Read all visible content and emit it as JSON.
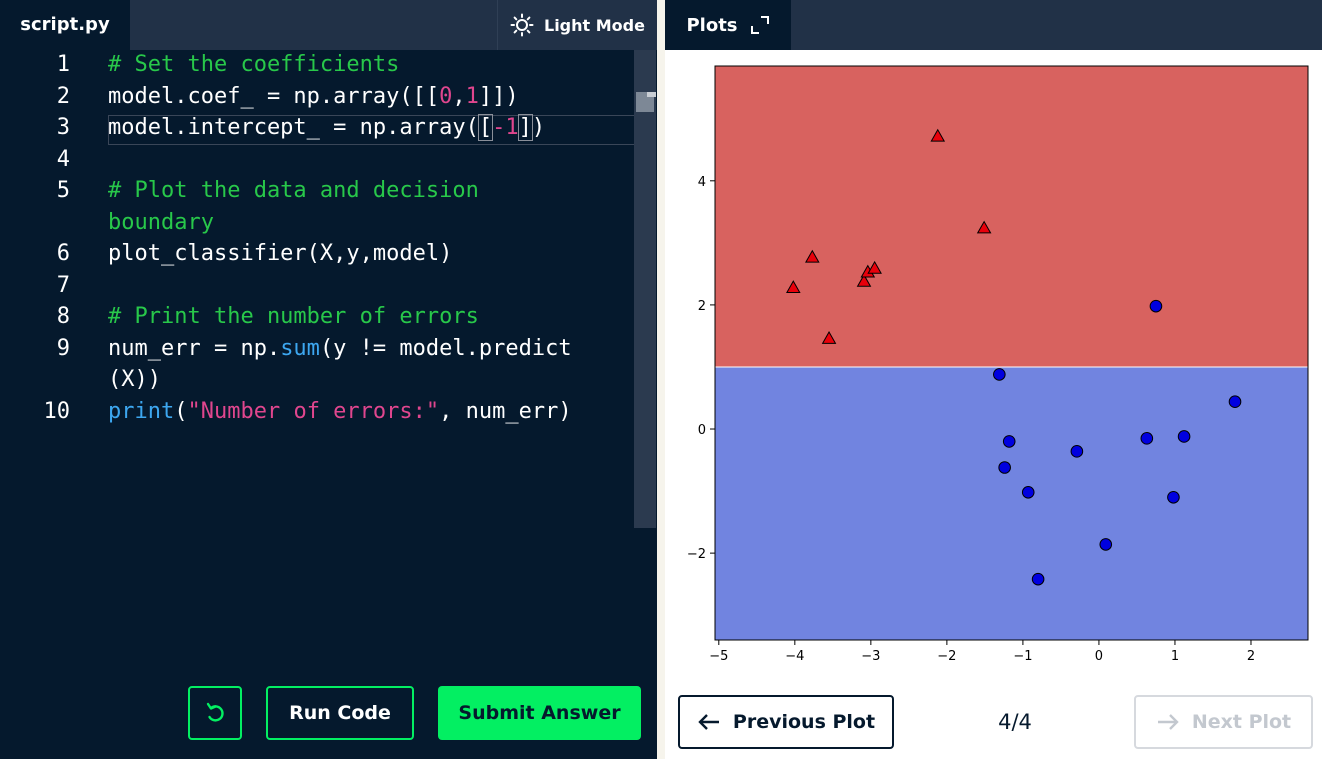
{
  "editor": {
    "tab_label": "script.py",
    "mode_label": "Light Mode",
    "mode_icon": "sun-icon",
    "line_numbers": [
      "1",
      "2",
      "3",
      "4",
      "5",
      "",
      "6",
      "7",
      "8",
      "9",
      "",
      "10"
    ],
    "lines": [
      [
        {
          "t": "# Set the coefficients",
          "c": "cmt"
        }
      ],
      [
        {
          "t": "model.coef_ = np.array([["
        },
        {
          "t": "0",
          "c": "num"
        },
        {
          "t": ","
        },
        {
          "t": "1",
          "c": "num"
        },
        {
          "t": "]])"
        }
      ],
      [
        {
          "t": "model.intercept_ = np.array("
        },
        {
          "t": "[",
          "c": "br"
        },
        {
          "t": "-1",
          "c": "num"
        },
        {
          "t": "]",
          "c": "br"
        },
        {
          "t": ")"
        }
      ],
      [],
      [
        {
          "t": "# Plot the data and decision",
          "c": "cmt"
        }
      ],
      [
        {
          "t": "boundary",
          "c": "cmt"
        }
      ],
      [
        {
          "t": "plot_classifier(X,y,model)"
        }
      ],
      [],
      [
        {
          "t": "# Print the number of errors",
          "c": "cmt"
        }
      ],
      [
        {
          "t": "num_err = np."
        },
        {
          "t": "sum",
          "c": "fn"
        },
        {
          "t": "(y != model.predict"
        }
      ],
      [
        {
          "t": "(X))"
        }
      ],
      [
        {
          "t": "print",
          "c": "fn"
        },
        {
          "t": "("
        },
        {
          "t": "\"Number of errors:\"",
          "c": "str"
        },
        {
          "t": ", num_err)"
        }
      ]
    ]
  },
  "actions": {
    "reset_icon": "undo-icon",
    "run_label": "Run Code",
    "submit_label": "Submit Answer"
  },
  "plots": {
    "tab_label": "Plots",
    "expand_icon": "expand-icon",
    "prev_label": "Previous Plot",
    "next_label": "Next Plot",
    "page": "4/4"
  },
  "colors": {
    "editor_bg": "#05192d",
    "accent": "#03ef62",
    "region_top": "#d8625f",
    "region_bottom": "#7184e0",
    "triangle": "#e8000b",
    "circle": "#0000e0"
  },
  "chart_data": {
    "type": "scatter",
    "xlim": [
      -5.05,
      2.75
    ],
    "ylim": [
      -3.4,
      5.85
    ],
    "xticks": [
      -5,
      -4,
      -3,
      -2,
      -1,
      0,
      1,
      2
    ],
    "yticks": [
      -2,
      0,
      2,
      4
    ],
    "xtick_labels": [
      "−5",
      "−4",
      "−3",
      "−2",
      "−1",
      "0",
      "1",
      "2"
    ],
    "ytick_labels": [
      "−2",
      "0",
      "2",
      "4"
    ],
    "decision_boundary_y": 1.0,
    "grid": false,
    "series": [
      {
        "marker": "triangle",
        "points": [
          [
            -4.02,
            2.27
          ],
          [
            -3.77,
            2.76
          ],
          [
            -3.55,
            1.45
          ],
          [
            -3.09,
            2.37
          ],
          [
            -3.04,
            2.52
          ],
          [
            -2.95,
            2.58
          ],
          [
            -2.12,
            4.71
          ],
          [
            -1.51,
            3.23
          ]
        ]
      },
      {
        "marker": "circle",
        "points": [
          [
            0.75,
            1.98
          ],
          [
            -1.31,
            0.88
          ],
          [
            1.79,
            0.44
          ],
          [
            -1.18,
            -0.2
          ],
          [
            -0.29,
            -0.36
          ],
          [
            0.63,
            -0.15
          ],
          [
            1.12,
            -0.12
          ],
          [
            -1.24,
            -0.62
          ],
          [
            -0.93,
            -1.02
          ],
          [
            0.98,
            -1.1
          ],
          [
            0.09,
            -1.86
          ],
          [
            -0.8,
            -2.42
          ]
        ]
      }
    ]
  }
}
